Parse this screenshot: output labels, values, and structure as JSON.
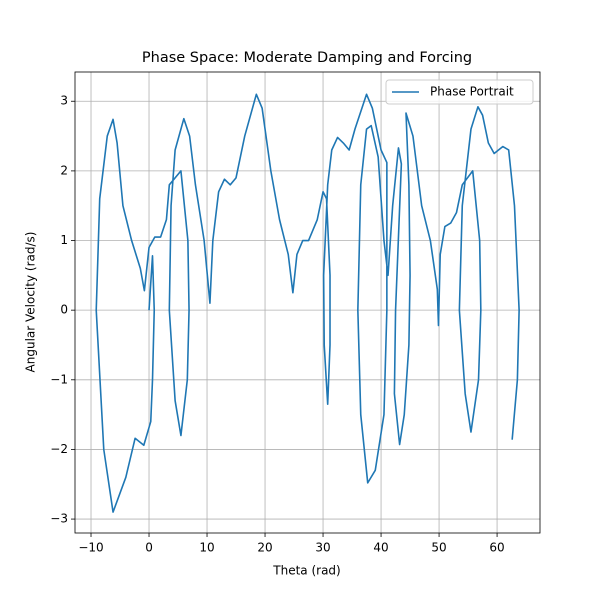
{
  "chart_data": {
    "type": "line",
    "title": "Phase Space: Moderate Damping and Forcing",
    "x_label": "Theta (rad)",
    "y_label": "Angular Velocity (rad/s)",
    "x": [
      0,
      0.6,
      0.9,
      0.6,
      0.3,
      -0.9,
      -2.4,
      -4,
      -6.2,
      -7.8,
      -9.1,
      -8.5,
      -7.2,
      -6.2,
      -5.5,
      -4.5,
      -3,
      -1.5,
      -0.8,
      0,
      1,
      2,
      3,
      3.5,
      5.5,
      6.7,
      6.9,
      6.6,
      5.5,
      4.5,
      3.5,
      3.8,
      4.5,
      6,
      7,
      8,
      9.5,
      10.5,
      11,
      12,
      13,
      14,
      15,
      16.5,
      18.5,
      19.5,
      21,
      22.5,
      24,
      24.8,
      25.5,
      26.5,
      27.5,
      29,
      30,
      30.6,
      31.2,
      31.2,
      30.8,
      30.2,
      30.1,
      30.8,
      31.5,
      32.5,
      33.5,
      34.5,
      35.5,
      37.5,
      38.5,
      40,
      41,
      41,
      40.5,
      39,
      37.7,
      36.5,
      36,
      36.5,
      37.5,
      38.3,
      39.5,
      40.5,
      41.2,
      42,
      43,
      43.5,
      42.5,
      42.3,
      43.2,
      44,
      44.8,
      45,
      44.8,
      44.3,
      45.5,
      47,
      48.5,
      49.7,
      49.9,
      50.2,
      51,
      52,
      53,
      54,
      55.8,
      57,
      57.2,
      56.8,
      55.5,
      54.5,
      53.5,
      54,
      55.5,
      56.7,
      57.5,
      58.5,
      59.5,
      61,
      62,
      63,
      63.8,
      63.5,
      62.6
    ],
    "series": [
      {
        "name": "Phase Portrait",
        "color": "#1f77b4",
        "values": [
          0,
          0.78,
          0,
          -1,
          -1.6,
          -1.94,
          -1.84,
          -2.4,
          -2.9,
          -2,
          0,
          1.6,
          2.5,
          2.74,
          2.4,
          1.5,
          1,
          0.6,
          0.28,
          0.9,
          1.05,
          1.05,
          1.3,
          1.8,
          2,
          1,
          0,
          -1,
          -1.8,
          -1.3,
          0,
          1.5,
          2.3,
          2.75,
          2.5,
          1.8,
          1,
          0.1,
          1,
          1.7,
          1.88,
          1.8,
          1.9,
          2.5,
          3.1,
          2.9,
          2,
          1.3,
          0.8,
          0.25,
          0.8,
          1,
          1,
          1.3,
          1.7,
          1.6,
          0.5,
          -0.5,
          -1.35,
          -0.5,
          0.5,
          1.8,
          2.3,
          2.48,
          2.4,
          2.3,
          2.6,
          3.1,
          2.9,
          2.3,
          2.12,
          0,
          -1.5,
          -2.3,
          -2.48,
          -1.5,
          0,
          1.8,
          2.6,
          2.65,
          2.2,
          1,
          0.5,
          1.5,
          2.33,
          2.1,
          0,
          -1.2,
          -1.93,
          -1.5,
          -0.5,
          0.5,
          1.8,
          2.83,
          2.5,
          1.5,
          1,
          0.3,
          -0.22,
          0.8,
          1.2,
          1.25,
          1.4,
          1.8,
          2,
          1,
          0,
          -1,
          -1.75,
          -1.2,
          0,
          1.5,
          2.6,
          2.92,
          2.8,
          2.4,
          2.25,
          2.35,
          2.3,
          1.5,
          0,
          -1,
          -1.86
        ]
      }
    ],
    "xlim": [
      -12.76,
      67.4
    ],
    "ylim": [
      -3.2,
      3.42
    ],
    "xticks": [
      {
        "value": -10,
        "label": "−10"
      },
      0,
      10,
      20,
      30,
      40,
      50,
      60
    ],
    "yticks": [
      {
        "value": -3,
        "label": "−3"
      },
      {
        "value": -2,
        "label": "−2"
      },
      {
        "value": -1,
        "label": "−1"
      },
      0,
      1,
      2,
      3
    ],
    "grid": true,
    "legend": "upper right"
  }
}
